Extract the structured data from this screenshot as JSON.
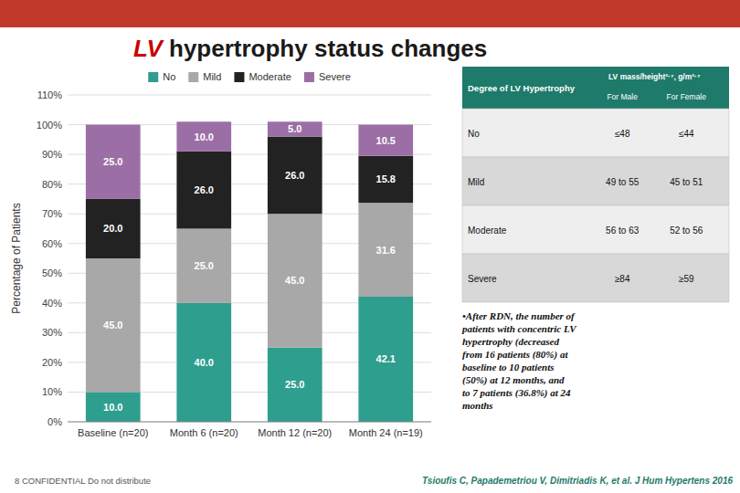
{
  "chart_data": {
    "type": "bar",
    "stacked": true,
    "title": "LV hypertrophy status changes",
    "ylabel": "Percentage of Patients",
    "categories": [
      "Baseline (n=20)",
      "Month 6 (n=20)",
      "Month 12 (n=20)",
      "Month 24 (n=19)"
    ],
    "series": [
      {
        "name": "No",
        "color": "#2e9e8e",
        "values": [
          10.0,
          40.0,
          25.0,
          42.1
        ],
        "value_labels": [
          "10.0",
          "40.0",
          "25.0",
          "42.1"
        ]
      },
      {
        "name": "Mild",
        "color": "#a8a8a8",
        "values": [
          45.0,
          25.0,
          45.0,
          31.6
        ],
        "value_labels": [
          "45.0",
          "25.0",
          "45.0",
          "31.6"
        ]
      },
      {
        "name": "Moderate",
        "color": "#222222",
        "values": [
          20.0,
          26.0,
          26.0,
          15.8
        ],
        "value_labels": [
          "20.0",
          "26.0",
          "26.0",
          "15.8"
        ]
      },
      {
        "name": "Severe",
        "color": "#9b6fa5",
        "values": [
          25.0,
          10.0,
          5.0,
          10.5
        ],
        "value_labels": [
          "25.0",
          "10.0",
          "5.0",
          "10.5"
        ]
      }
    ],
    "ylim": [
      0,
      110
    ],
    "yticks": [
      {
        "value": 0,
        "label": "0%"
      },
      {
        "value": 10,
        "label": "10%"
      },
      {
        "value": 20,
        "label": "20%"
      },
      {
        "value": 30,
        "label": "30%"
      },
      {
        "value": 40,
        "label": "40%"
      },
      {
        "value": 50,
        "label": "50%"
      },
      {
        "value": 60,
        "label": "60%"
      },
      {
        "value": 70,
        "label": "70%"
      },
      {
        "value": 80,
        "label": "80%"
      },
      {
        "value": 90,
        "label": "90%"
      },
      {
        "value": 100,
        "label": "100%"
      },
      {
        "value": 110,
        "label": "110%"
      }
    ],
    "grid": true,
    "legend": "top",
    "data_labels": true,
    "table": {
      "header": "Degree of LV Hypertrophy",
      "group_header": "LV mass/height²·⁷, g/m²·⁷",
      "columns": [
        "For Male",
        "For Female"
      ],
      "rows": [
        [
          "No",
          "≤48",
          "≤44"
        ],
        [
          "Mild",
          "49 to 55",
          "45 to 51"
        ],
        [
          "Moderate",
          "56 to 63",
          "52 to 56"
        ],
        [
          "Severe",
          "≥84",
          "≥59"
        ]
      ]
    },
    "annotations": [
      "•After RDN, the number of\npatients with concentric LV\nhypertrophy (decreased\nfrom 16 patients (80%) at\nbaseline to 10 patients\n(50%) at 12 months, and\nto 7 patients (36.8%) at 24\nmonths",
      "8  CONFIDENTIAL Do not distribute",
      "Tsioufis C, Papademetriou V, Dimitriadis K, et al. J Hum Hypertens 2016"
    ]
  }
}
